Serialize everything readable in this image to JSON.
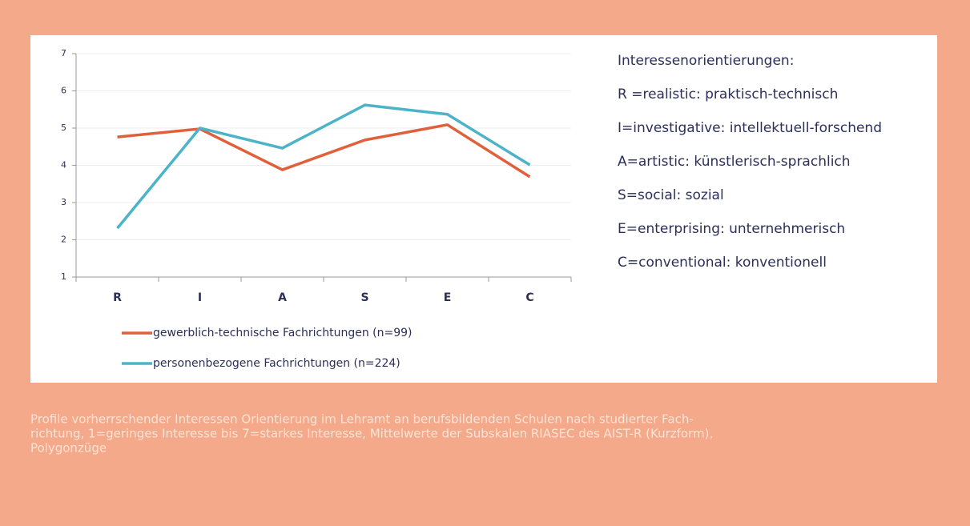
{
  "chart_data": {
    "type": "line",
    "categories": [
      "R",
      "I",
      "A",
      "S",
      "E",
      "C"
    ],
    "series": [
      {
        "name": "gewerblich-technische Fachrichtungen (n=99)",
        "color": "#e0603c",
        "values": [
          4.76,
          4.98,
          3.88,
          4.68,
          5.09,
          3.69
        ]
      },
      {
        "name": "personenbezogene Fachrichtungen (n=224)",
        "color": "#4db3c8",
        "values": [
          2.31,
          5.0,
          4.46,
          5.62,
          5.37,
          4.01
        ]
      }
    ],
    "ylim": [
      1,
      7
    ],
    "yticks": [
      1,
      2,
      3,
      4,
      5,
      6,
      7
    ],
    "grid": true,
    "legend": "bottom"
  },
  "key": {
    "title": "Interessenorientierungen:",
    "items": [
      "R =realistic: praktisch-technisch",
      "I=investigative: intellektuell-forschend",
      "A=artistic: künstlerisch-sprachlich",
      "S=social: sozial",
      "E=enterprising: unternehmerisch",
      "C=conventional: konventionell"
    ]
  },
  "caption": [
    "Profile vorherrschender Interessen Orientierung im Lehramt an berufsbildenden Schulen nach studierter Fach-",
    "richtung, 1=geringes Interesse bis 7=starkes Interesse, Mittelwerte der Subskalen RIASEC des AIST-R (Kurzform),",
    "Polygonzüge"
  ]
}
